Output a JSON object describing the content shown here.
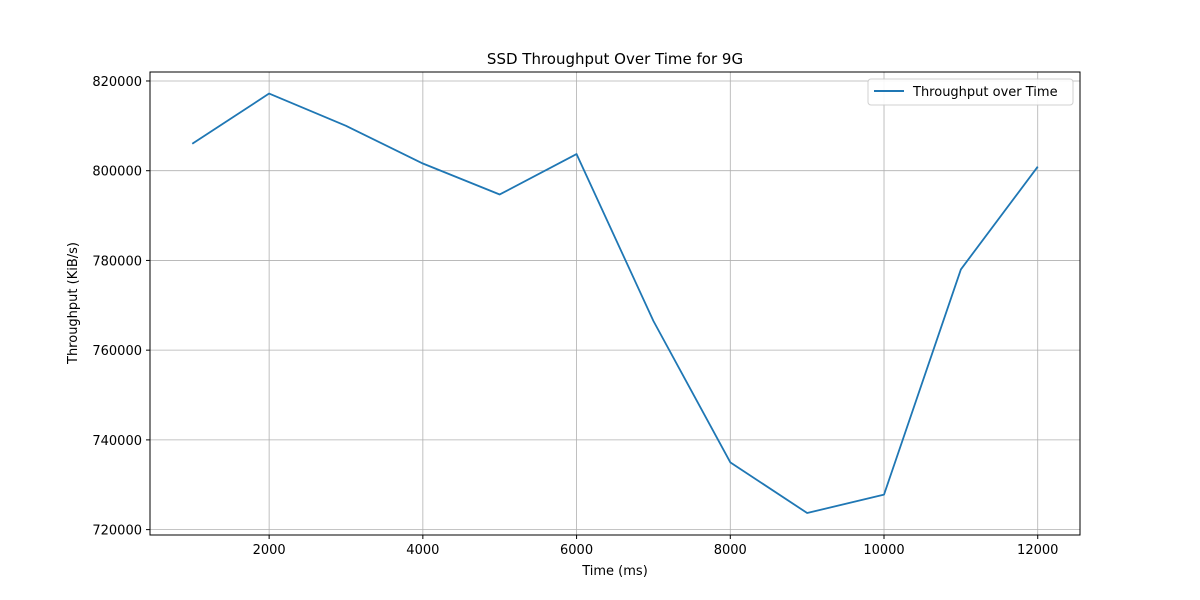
{
  "chart_data": {
    "type": "line",
    "title": "SSD Throughput Over Time for 9G",
    "xlabel": "Time (ms)",
    "ylabel": "Throughput (KiB/s)",
    "x": [
      1000,
      2000,
      3000,
      4000,
      5000,
      6000,
      7000,
      8000,
      9000,
      10000,
      11000,
      12000
    ],
    "series": [
      {
        "name": "Throughput over Time",
        "color": "#1f77b4",
        "values": [
          806000,
          817200,
          810000,
          801600,
          794700,
          803700,
          766500,
          735000,
          723700,
          727800,
          778000,
          800900
        ]
      }
    ],
    "xlim": [
      450,
      12550
    ],
    "ylim": [
      718800,
      822000
    ],
    "xticks": [
      2000,
      4000,
      6000,
      8000,
      10000,
      12000
    ],
    "yticks": [
      720000,
      740000,
      760000,
      780000,
      800000,
      820000
    ],
    "xtick_labels": [
      "2000",
      "4000",
      "6000",
      "8000",
      "10000",
      "12000"
    ],
    "ytick_labels": [
      "720000",
      "740000",
      "760000",
      "780000",
      "800000",
      "820000"
    ],
    "grid": true,
    "legend_position": "top-right"
  }
}
